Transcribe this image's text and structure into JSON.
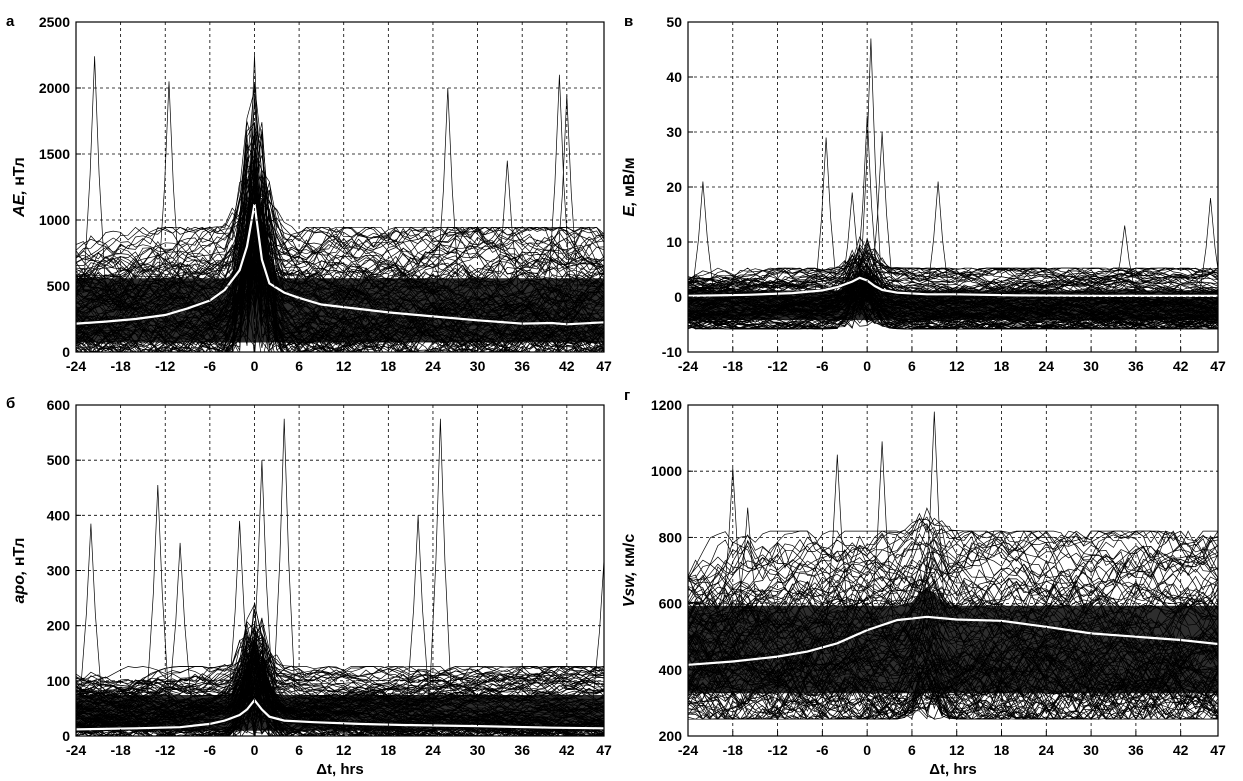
{
  "chart_data": [
    {
      "type": "line",
      "panel_letter": "а",
      "ylabel_italic": "AE,",
      "ylabel_unit": " нТл",
      "xlabel": "",
      "xlim": [
        -24,
        47
      ],
      "ylim": [
        0,
        2500
      ],
      "xticks": [
        "-24",
        "-18",
        "-12",
        "-6",
        "0",
        "6",
        "12",
        "18",
        "24",
        "30",
        "36",
        "42",
        "47"
      ],
      "yticks": [
        "0",
        "500",
        "1000",
        "1500",
        "2000",
        "2500"
      ],
      "grid": true,
      "dense_band": {
        "low": 0,
        "high": 900,
        "peak_x": 0,
        "peak_y": 2100
      },
      "spikes": [
        [
          -21.5,
          2240
        ],
        [
          -11.5,
          2050
        ],
        [
          0,
          2250
        ],
        [
          26,
          2000
        ],
        [
          34,
          1450
        ],
        [
          41,
          2100
        ],
        [
          42,
          1950
        ]
      ],
      "series": [
        {
          "color": "#ffffff",
          "x": [
            -24,
            -20,
            -16,
            -12,
            -9,
            -6,
            -4,
            -2,
            -1,
            0,
            1,
            2,
            4,
            6,
            9,
            12,
            18,
            24,
            30,
            36,
            40,
            42,
            47
          ],
          "y": [
            215,
            230,
            250,
            280,
            330,
            390,
            470,
            620,
            800,
            1120,
            700,
            520,
            450,
            410,
            360,
            340,
            300,
            270,
            240,
            215,
            220,
            210,
            225
          ]
        }
      ]
    },
    {
      "type": "line",
      "panel_letter": "в",
      "ylabel_italic": "E,",
      "ylabel_unit": " мВ/м",
      "xlabel": "",
      "xlim": [
        -24,
        47
      ],
      "ylim": [
        -10,
        50
      ],
      "xticks": [
        "-24",
        "-18",
        "-12",
        "-6",
        "0",
        "6",
        "12",
        "18",
        "24",
        "30",
        "36",
        "42",
        "47"
      ],
      "yticks": [
        "-10",
        "0",
        "10",
        "20",
        "30",
        "40",
        "50"
      ],
      "grid": true,
      "dense_band": {
        "low": -5,
        "high": 5,
        "peak_x": -0.5,
        "peak_y": 12
      },
      "spikes": [
        [
          -22,
          21
        ],
        [
          -5.5,
          29
        ],
        [
          -2,
          19
        ],
        [
          0.5,
          47
        ],
        [
          0,
          33
        ],
        [
          2,
          30
        ],
        [
          9.5,
          21
        ],
        [
          34.5,
          13
        ],
        [
          46,
          18
        ]
      ],
      "series": [
        {
          "color": "#ffffff",
          "x": [
            -24,
            -16,
            -10,
            -6,
            -4,
            -2,
            -1,
            0,
            1,
            2,
            4,
            8,
            12,
            20,
            30,
            40,
            47
          ],
          "y": [
            0.2,
            0.4,
            0.7,
            1.2,
            1.8,
            2.8,
            3.5,
            3.0,
            2.0,
            1.3,
            0.8,
            0.5,
            0.5,
            0.3,
            0.2,
            0.2,
            0.2
          ]
        }
      ]
    },
    {
      "type": "line",
      "panel_letter": "б",
      "ylabel_italic": "apo,",
      "ylabel_unit": " нТл",
      "xlabel": "Δt, hrs",
      "xlim": [
        -24,
        47
      ],
      "ylim": [
        0,
        600
      ],
      "xticks": [
        "-24",
        "-18",
        "-12",
        "-6",
        "0",
        "6",
        "12",
        "18",
        "24",
        "30",
        "36",
        "42",
        "47"
      ],
      "yticks": [
        "0",
        "100",
        "200",
        "300",
        "400",
        "500",
        "600"
      ],
      "grid": true,
      "dense_band": {
        "low": 0,
        "high": 120,
        "peak_x": 0,
        "peak_y": 260
      },
      "spikes": [
        [
          -22,
          385
        ],
        [
          -13,
          455
        ],
        [
          -10,
          350
        ],
        [
          -2,
          390
        ],
        [
          1,
          500
        ],
        [
          4,
          575
        ],
        [
          22,
          400
        ],
        [
          25,
          575
        ],
        [
          47,
          320
        ]
      ],
      "series": [
        {
          "color": "#ffffff",
          "x": [
            -24,
            -16,
            -10,
            -6,
            -4,
            -2,
            -1,
            0,
            1,
            2,
            4,
            8,
            14,
            20,
            30,
            40,
            47
          ],
          "y": [
            12,
            14,
            16,
            22,
            28,
            38,
            48,
            65,
            48,
            35,
            28,
            25,
            22,
            20,
            18,
            15,
            14
          ]
        }
      ]
    },
    {
      "type": "line",
      "panel_letter": "г",
      "ylabel_italic": "Vsw,",
      "ylabel_unit": " км/с",
      "xlabel": "Δt, hrs",
      "xlim": [
        -24,
        47
      ],
      "ylim": [
        200,
        1200
      ],
      "xticks": [
        "-24",
        "-18",
        "-12",
        "-6",
        "0",
        "6",
        "12",
        "18",
        "24",
        "30",
        "36",
        "42",
        "47"
      ],
      "yticks": [
        "200",
        "400",
        "600",
        "800",
        "1000",
        "1200"
      ],
      "grid": true,
      "dense_band": {
        "low": 290,
        "high": 780,
        "peak_x": 8,
        "peak_y": 880
      },
      "spikes": [
        [
          -18,
          1010
        ],
        [
          9,
          1180
        ],
        [
          -4,
          1050
        ],
        [
          2,
          1090
        ],
        [
          -16,
          890
        ]
      ],
      "series": [
        {
          "color": "#ffffff",
          "x": [
            -24,
            -18,
            -12,
            -8,
            -4,
            0,
            4,
            8,
            12,
            18,
            24,
            30,
            36,
            42,
            47
          ],
          "y": [
            415,
            425,
            440,
            455,
            480,
            520,
            550,
            560,
            552,
            548,
            530,
            510,
            500,
            490,
            478
          ]
        }
      ]
    }
  ]
}
